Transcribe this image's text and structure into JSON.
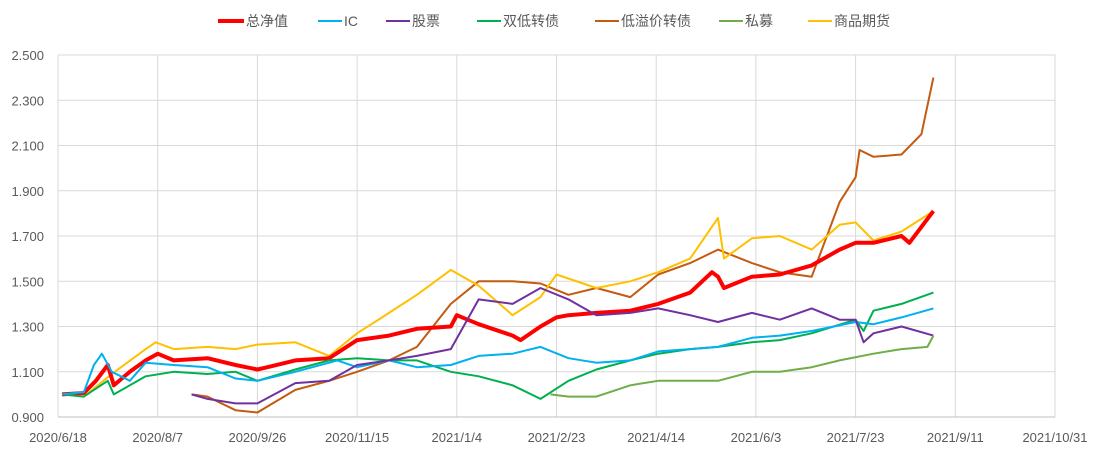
{
  "chart_data": {
    "type": "line",
    "title": "",
    "xlabel": "",
    "ylabel": "",
    "ylim": [
      0.9,
      2.5
    ],
    "yticks": [
      "0.900",
      "1.100",
      "1.300",
      "1.500",
      "1.700",
      "1.900",
      "2.100",
      "2.300",
      "2.500"
    ],
    "xlim": [
      "2020/6/18",
      "2021/10/31"
    ],
    "xticks": [
      "2020/6/18",
      "2020/8/7",
      "2020/9/26",
      "2020/11/15",
      "2021/1/4",
      "2021/2/23",
      "2021/4/14",
      "2021/6/3",
      "2021/7/23",
      "2021/9/11",
      "2021/10/31"
    ],
    "grid": true,
    "legend": "top",
    "series": [
      {
        "name": "总净值",
        "color": "#FF0000",
        "width": 4,
        "points": [
          [
            "2020/6/20",
            1.0
          ],
          [
            "2020/7/1",
            1.006
          ],
          [
            "2020/7/7",
            1.06
          ],
          [
            "2020/7/13",
            1.13
          ],
          [
            "2020/7/16",
            1.04
          ],
          [
            "2020/7/24",
            1.1
          ],
          [
            "2020/8/1",
            1.15
          ],
          [
            "2020/8/7",
            1.18
          ],
          [
            "2020/8/15",
            1.15
          ],
          [
            "2020/9/1",
            1.16
          ],
          [
            "2020/9/15",
            1.13
          ],
          [
            "2020/9/26",
            1.11
          ],
          [
            "2020/10/1",
            1.12
          ],
          [
            "2020/10/15",
            1.15
          ],
          [
            "2020/11/1",
            1.16
          ],
          [
            "2020/11/15",
            1.24
          ],
          [
            "2020/12/1",
            1.26
          ],
          [
            "2020/12/15",
            1.29
          ],
          [
            "2021/1/1",
            1.3
          ],
          [
            "2021/1/4",
            1.35
          ],
          [
            "2021/1/15",
            1.31
          ],
          [
            "2021/2/1",
            1.26
          ],
          [
            "2021/2/5",
            1.24
          ],
          [
            "2021/2/15",
            1.3
          ],
          [
            "2021/2/23",
            1.34
          ],
          [
            "2021/3/1",
            1.35
          ],
          [
            "2021/3/15",
            1.36
          ],
          [
            "2021/4/1",
            1.37
          ],
          [
            "2021/4/15",
            1.4
          ],
          [
            "2021/5/1",
            1.45
          ],
          [
            "2021/5/15",
            1.52
          ],
          [
            "2021/5/12",
            1.54
          ],
          [
            "2021/5/18",
            1.47
          ],
          [
            "2021/6/1",
            1.52
          ],
          [
            "2021/6/15",
            1.53
          ],
          [
            "2021/7/1",
            1.57
          ],
          [
            "2021/7/15",
            1.64
          ],
          [
            "2021/7/23",
            1.67
          ],
          [
            "2021/8/1",
            1.67
          ],
          [
            "2021/8/15",
            1.7
          ],
          [
            "2021/8/19",
            1.67
          ],
          [
            "2021/8/31",
            1.81
          ]
        ]
      },
      {
        "name": "IC",
        "color": "#00B0F0",
        "width": 2,
        "points": [
          [
            "2020/6/20",
            1.0
          ],
          [
            "2020/7/1",
            1.01
          ],
          [
            "2020/7/6",
            1.13
          ],
          [
            "2020/7/10",
            1.18
          ],
          [
            "2020/7/15",
            1.1
          ],
          [
            "2020/7/24",
            1.06
          ],
          [
            "2020/8/1",
            1.14
          ],
          [
            "2020/8/15",
            1.13
          ],
          [
            "2020/9/1",
            1.12
          ],
          [
            "2020/9/15",
            1.07
          ],
          [
            "2020/9/26",
            1.06
          ],
          [
            "2020/10/15",
            1.1
          ],
          [
            "2020/11/1",
            1.14
          ],
          [
            "2020/11/5",
            1.15
          ],
          [
            "2020/11/15",
            1.12
          ],
          [
            "2020/12/1",
            1.15
          ],
          [
            "2020/12/15",
            1.12
          ],
          [
            "2021/1/1",
            1.13
          ],
          [
            "2021/1/15",
            1.17
          ],
          [
            "2021/2/1",
            1.18
          ],
          [
            "2021/2/15",
            1.21
          ],
          [
            "2021/3/1",
            1.16
          ],
          [
            "2021/3/15",
            1.14
          ],
          [
            "2021/4/1",
            1.15
          ],
          [
            "2021/4/15",
            1.19
          ],
          [
            "2021/5/1",
            1.2
          ],
          [
            "2021/5/15",
            1.21
          ],
          [
            "2021/6/1",
            1.25
          ],
          [
            "2021/6/15",
            1.26
          ],
          [
            "2021/7/1",
            1.28
          ],
          [
            "2021/7/23",
            1.32
          ],
          [
            "2021/8/1",
            1.31
          ],
          [
            "2021/8/15",
            1.34
          ],
          [
            "2021/8/31",
            1.38
          ]
        ]
      },
      {
        "name": "股票",
        "color": "#7030A0",
        "width": 2,
        "points": [
          [
            "2020/8/24",
            1.0
          ],
          [
            "2020/9/1",
            0.98
          ],
          [
            "2020/9/15",
            0.96
          ],
          [
            "2020/9/26",
            0.96
          ],
          [
            "2020/10/15",
            1.05
          ],
          [
            "2020/11/1",
            1.06
          ],
          [
            "2020/11/15",
            1.13
          ],
          [
            "2020/12/1",
            1.15
          ],
          [
            "2020/12/15",
            1.17
          ],
          [
            "2021/1/1",
            1.2
          ],
          [
            "2021/1/15",
            1.42
          ],
          [
            "2021/2/1",
            1.4
          ],
          [
            "2021/2/15",
            1.47
          ],
          [
            "2021/3/1",
            1.42
          ],
          [
            "2021/3/15",
            1.35
          ],
          [
            "2021/4/1",
            1.36
          ],
          [
            "2021/4/15",
            1.38
          ],
          [
            "2021/5/1",
            1.35
          ],
          [
            "2021/5/15",
            1.32
          ],
          [
            "2021/6/1",
            1.36
          ],
          [
            "2021/6/15",
            1.33
          ],
          [
            "2021/7/1",
            1.38
          ],
          [
            "2021/7/15",
            1.33
          ],
          [
            "2021/7/23",
            1.33
          ],
          [
            "2021/7/27",
            1.23
          ],
          [
            "2021/8/1",
            1.27
          ],
          [
            "2021/8/15",
            1.3
          ],
          [
            "2021/8/31",
            1.26
          ]
        ]
      },
      {
        "name": "双低转债",
        "color": "#00B050",
        "width": 2,
        "points": [
          [
            "2020/6/20",
            1.0
          ],
          [
            "2020/7/1",
            0.99
          ],
          [
            "2020/7/13",
            1.06
          ],
          [
            "2020/7/16",
            1.0
          ],
          [
            "2020/8/1",
            1.08
          ],
          [
            "2020/8/15",
            1.1
          ],
          [
            "2020/9/1",
            1.09
          ],
          [
            "2020/9/15",
            1.1
          ],
          [
            "2020/9/26",
            1.06
          ],
          [
            "2020/10/15",
            1.11
          ],
          [
            "2020/11/1",
            1.15
          ],
          [
            "2020/11/15",
            1.16
          ],
          [
            "2020/12/1",
            1.15
          ],
          [
            "2020/12/15",
            1.15
          ],
          [
            "2021/1/1",
            1.1
          ],
          [
            "2021/1/15",
            1.08
          ],
          [
            "2021/2/1",
            1.04
          ],
          [
            "2021/2/15",
            0.98
          ],
          [
            "2021/3/1",
            1.06
          ],
          [
            "2021/3/15",
            1.11
          ],
          [
            "2021/4/1",
            1.15
          ],
          [
            "2021/4/15",
            1.18
          ],
          [
            "2021/5/1",
            1.2
          ],
          [
            "2021/5/15",
            1.21
          ],
          [
            "2021/6/1",
            1.23
          ],
          [
            "2021/6/15",
            1.24
          ],
          [
            "2021/7/1",
            1.27
          ],
          [
            "2021/7/23",
            1.33
          ],
          [
            "2021/7/27",
            1.28
          ],
          [
            "2021/8/1",
            1.37
          ],
          [
            "2021/8/15",
            1.4
          ],
          [
            "2021/8/31",
            1.45
          ]
        ]
      },
      {
        "name": "低溢价转债",
        "color": "#C55A11",
        "width": 2,
        "points": [
          [
            "2020/8/24",
            1.0
          ],
          [
            "2020/9/1",
            0.99
          ],
          [
            "2020/9/15",
            0.93
          ],
          [
            "2020/9/26",
            0.92
          ],
          [
            "2020/10/15",
            1.02
          ],
          [
            "2020/11/1",
            1.06
          ],
          [
            "2020/11/15",
            1.1
          ],
          [
            "2020/12/1",
            1.15
          ],
          [
            "2020/12/15",
            1.21
          ],
          [
            "2021/1/1",
            1.4
          ],
          [
            "2021/1/15",
            1.5
          ],
          [
            "2021/2/1",
            1.5
          ],
          [
            "2021/2/15",
            1.49
          ],
          [
            "2021/3/1",
            1.44
          ],
          [
            "2021/3/15",
            1.47
          ],
          [
            "2021/4/1",
            1.43
          ],
          [
            "2021/4/15",
            1.53
          ],
          [
            "2021/5/1",
            1.58
          ],
          [
            "2021/5/15",
            1.64
          ],
          [
            "2021/6/1",
            1.58
          ],
          [
            "2021/6/15",
            1.54
          ],
          [
            "2021/7/1",
            1.52
          ],
          [
            "2021/7/15",
            1.85
          ],
          [
            "2021/7/23",
            1.96
          ],
          [
            "2021/7/25",
            2.08
          ],
          [
            "2021/8/1",
            2.05
          ],
          [
            "2021/8/15",
            2.06
          ],
          [
            "2021/8/25",
            2.15
          ],
          [
            "2021/8/31",
            2.4
          ]
        ]
      },
      {
        "name": "私募",
        "color": "#70AD47",
        "width": 2,
        "points": [
          [
            "2021/2/20",
            1.0
          ],
          [
            "2021/3/1",
            0.99
          ],
          [
            "2021/3/15",
            0.99
          ],
          [
            "2021/4/1",
            1.04
          ],
          [
            "2021/4/15",
            1.06
          ],
          [
            "2021/5/1",
            1.06
          ],
          [
            "2021/5/15",
            1.06
          ],
          [
            "2021/6/1",
            1.1
          ],
          [
            "2021/6/15",
            1.1
          ],
          [
            "2021/7/1",
            1.12
          ],
          [
            "2021/7/15",
            1.15
          ],
          [
            "2021/8/1",
            1.18
          ],
          [
            "2021/8/15",
            1.2
          ],
          [
            "2021/8/28",
            1.21
          ],
          [
            "2021/8/31",
            1.26
          ]
        ]
      },
      {
        "name": "商品期货",
        "color": "#FFC000",
        "width": 2,
        "points": [
          [
            "2020/6/20",
            1.0
          ],
          [
            "2020/7/1",
            0.99
          ],
          [
            "2020/7/15",
            1.09
          ],
          [
            "2020/8/1",
            1.2
          ],
          [
            "2020/8/6",
            1.23
          ],
          [
            "2020/8/15",
            1.2
          ],
          [
            "2020/9/1",
            1.21
          ],
          [
            "2020/9/15",
            1.2
          ],
          [
            "2020/9/26",
            1.22
          ],
          [
            "2020/10/15",
            1.23
          ],
          [
            "2020/11/1",
            1.17
          ],
          [
            "2020/11/15",
            1.27
          ],
          [
            "2020/12/1",
            1.36
          ],
          [
            "2020/12/15",
            1.44
          ],
          [
            "2021/1/1",
            1.55
          ],
          [
            "2021/1/15",
            1.48
          ],
          [
            "2021/2/1",
            1.35
          ],
          [
            "2021/2/15",
            1.43
          ],
          [
            "2021/2/23",
            1.53
          ],
          [
            "2021/3/15",
            1.47
          ],
          [
            "2021/4/1",
            1.5
          ],
          [
            "2021/4/15",
            1.54
          ],
          [
            "2021/5/1",
            1.6
          ],
          [
            "2021/5/15",
            1.78
          ],
          [
            "2021/5/18",
            1.6
          ],
          [
            "2021/6/1",
            1.69
          ],
          [
            "2021/6/15",
            1.7
          ],
          [
            "2021/7/1",
            1.64
          ],
          [
            "2021/7/15",
            1.75
          ],
          [
            "2021/7/23",
            1.76
          ],
          [
            "2021/8/1",
            1.68
          ],
          [
            "2021/8/15",
            1.72
          ],
          [
            "2021/8/31",
            1.81
          ]
        ]
      }
    ]
  }
}
